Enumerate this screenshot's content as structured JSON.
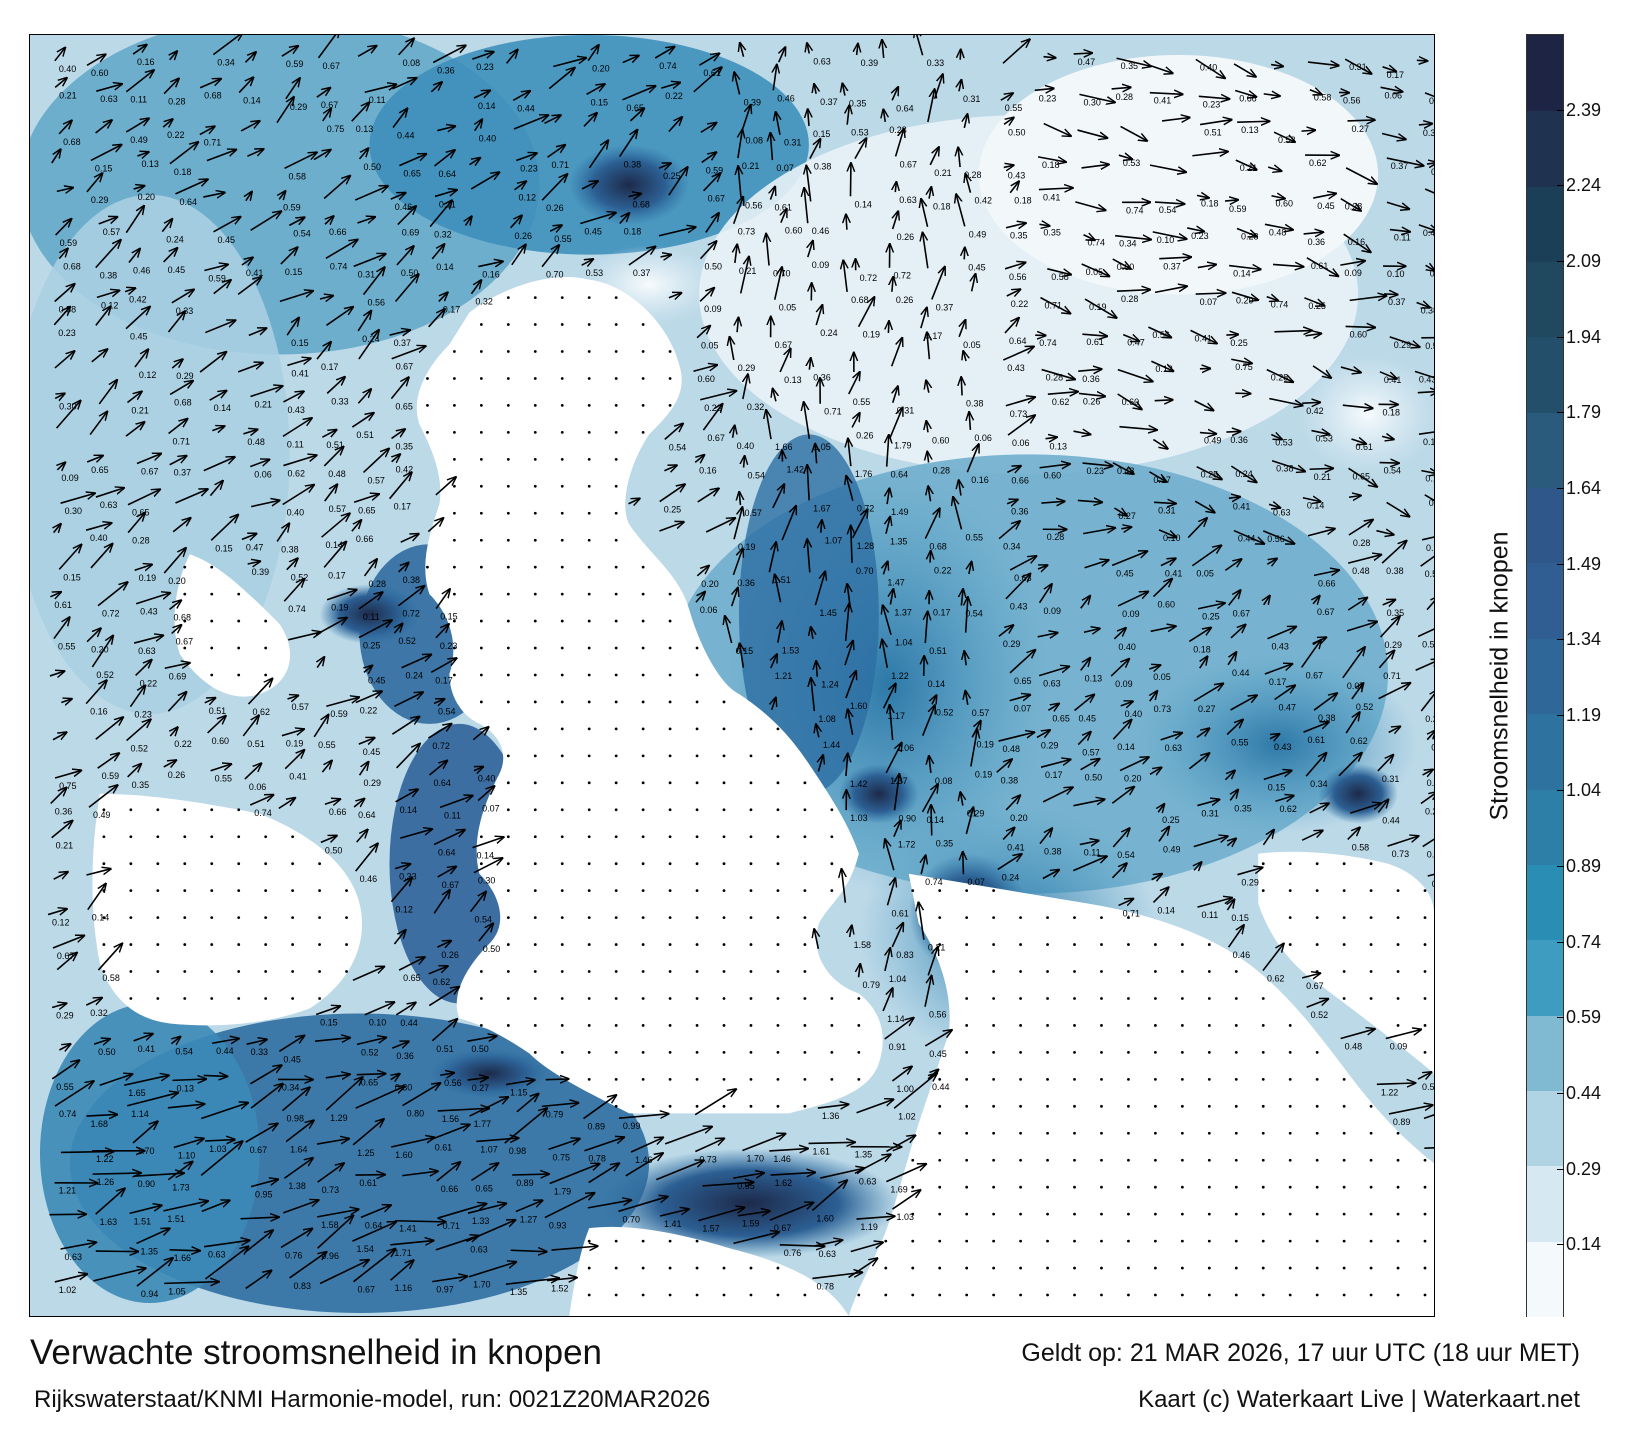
{
  "title": "Verwachte stroomsnelheid in knopen",
  "subtitle": "Rijkswaterstaat/KNMI Harmonie-model, run: 0021Z20MAR2026",
  "valid_time": "Geldt op: 21 MAR 2026, 17 uur UTC (18 uur MET)",
  "credit": "Kaart (c) Waterkaart Live | Waterkaart.net",
  "colorbar": {
    "label": "Stroomsnelheid in knopen",
    "ticks": [
      "0.14",
      "0.29",
      "0.44",
      "0.59",
      "0.74",
      "0.89",
      "1.04",
      "1.19",
      "1.34",
      "1.49",
      "1.64",
      "1.79",
      "1.94",
      "2.09",
      "2.24",
      "2.39"
    ],
    "range": [
      0,
      2.54
    ],
    "colors": [
      "#f4f9fc",
      "#d6e8f1",
      "#b1d4e4",
      "#7fbad2",
      "#3d9cc0",
      "#2a8db3",
      "#2d7fa8",
      "#2e73a0",
      "#2f6799",
      "#305d92",
      "#2f5789",
      "#2b5b7c",
      "#244f6b",
      "#20495f",
      "#1c3f58",
      "#1f3250",
      "#1d2444"
    ]
  },
  "map": {
    "land_color": "#ffffff",
    "sea_color_deep": "#2c6fa2",
    "current_arrows": true,
    "speed_labels_shown": true
  }
}
